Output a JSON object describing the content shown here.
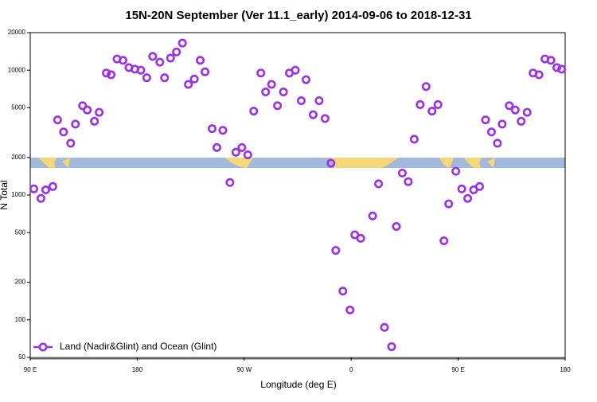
{
  "chart_data": {
    "type": "scatter",
    "title": "15N-20N September (Ver 11.1_early)   2014-09-06 to 2018-12-31",
    "x_label": "Longitude (deg E)",
    "y_label": "N Total",
    "log_scale_y": true,
    "xlim": [
      90,
      540
    ],
    "xticks": [
      {
        "value": 90,
        "label": "90 E"
      },
      {
        "value": 180,
        "label": "180"
      },
      {
        "value": 270,
        "label": "90 W"
      },
      {
        "value": 360,
        "label": "0"
      },
      {
        "value": 450,
        "label": "90 E"
      },
      {
        "value": 540,
        "label": "180"
      }
    ],
    "ylim": [
      50,
      20000
    ],
    "yticks": [
      50,
      100,
      200,
      500,
      1000,
      2000,
      5000,
      10000,
      20000
    ],
    "legend_position": "lower-left",
    "series": [
      {
        "name": "Land (Nadir&Glint) and Ocean (Glint)",
        "color": "#9b30e8",
        "x": [
          93,
          99,
          103,
          109,
          113,
          118,
          124,
          128,
          134,
          138,
          144,
          148,
          154,
          158,
          163,
          168,
          173,
          178,
          183,
          188,
          193,
          199,
          203,
          208,
          213,
          218,
          223,
          228,
          233,
          237,
          243,
          247,
          252,
          258,
          263,
          268,
          273,
          278,
          284,
          288,
          293,
          298,
          303,
          308,
          313,
          318,
          322,
          328,
          333,
          338,
          343,
          347,
          353,
          359,
          363,
          368,
          378,
          383,
          388,
          394,
          398,
          403,
          408,
          413,
          418,
          423,
          428,
          433,
          438,
          442,
          448,
          453,
          458,
          463,
          468,
          473,
          478,
          483,
          487,
          493,
          498,
          503,
          508,
          513,
          518,
          523,
          528,
          533,
          537
        ],
        "values": [
          1120,
          940,
          1100,
          1170,
          4000,
          3200,
          2600,
          3700,
          5200,
          4800,
          3900,
          4600,
          9500,
          9200,
          12300,
          12000,
          10500,
          10200,
          10000,
          8700,
          12900,
          11600,
          8700,
          12500,
          14000,
          16500,
          7700,
          8500,
          12000,
          9700,
          3400,
          2400,
          3300,
          1260,
          2200,
          2400,
          2100,
          4700,
          9500,
          6700,
          7700,
          5200,
          6700,
          9500,
          10000,
          5700,
          8400,
          4400,
          5700,
          4100,
          1800,
          360,
          170,
          120,
          480,
          450,
          680,
          1230,
          87,
          61,
          560,
          1500,
          1280,
          2800,
          5300,
          7400,
          4700,
          5300,
          430,
          850,
          1550,
          1120,
          940,
          1100,
          1170,
          4000,
          3200,
          2600,
          3700,
          5200,
          4800,
          3900,
          4600,
          9500,
          9200,
          12300,
          12000,
          10500,
          10200
        ]
      }
    ]
  }
}
